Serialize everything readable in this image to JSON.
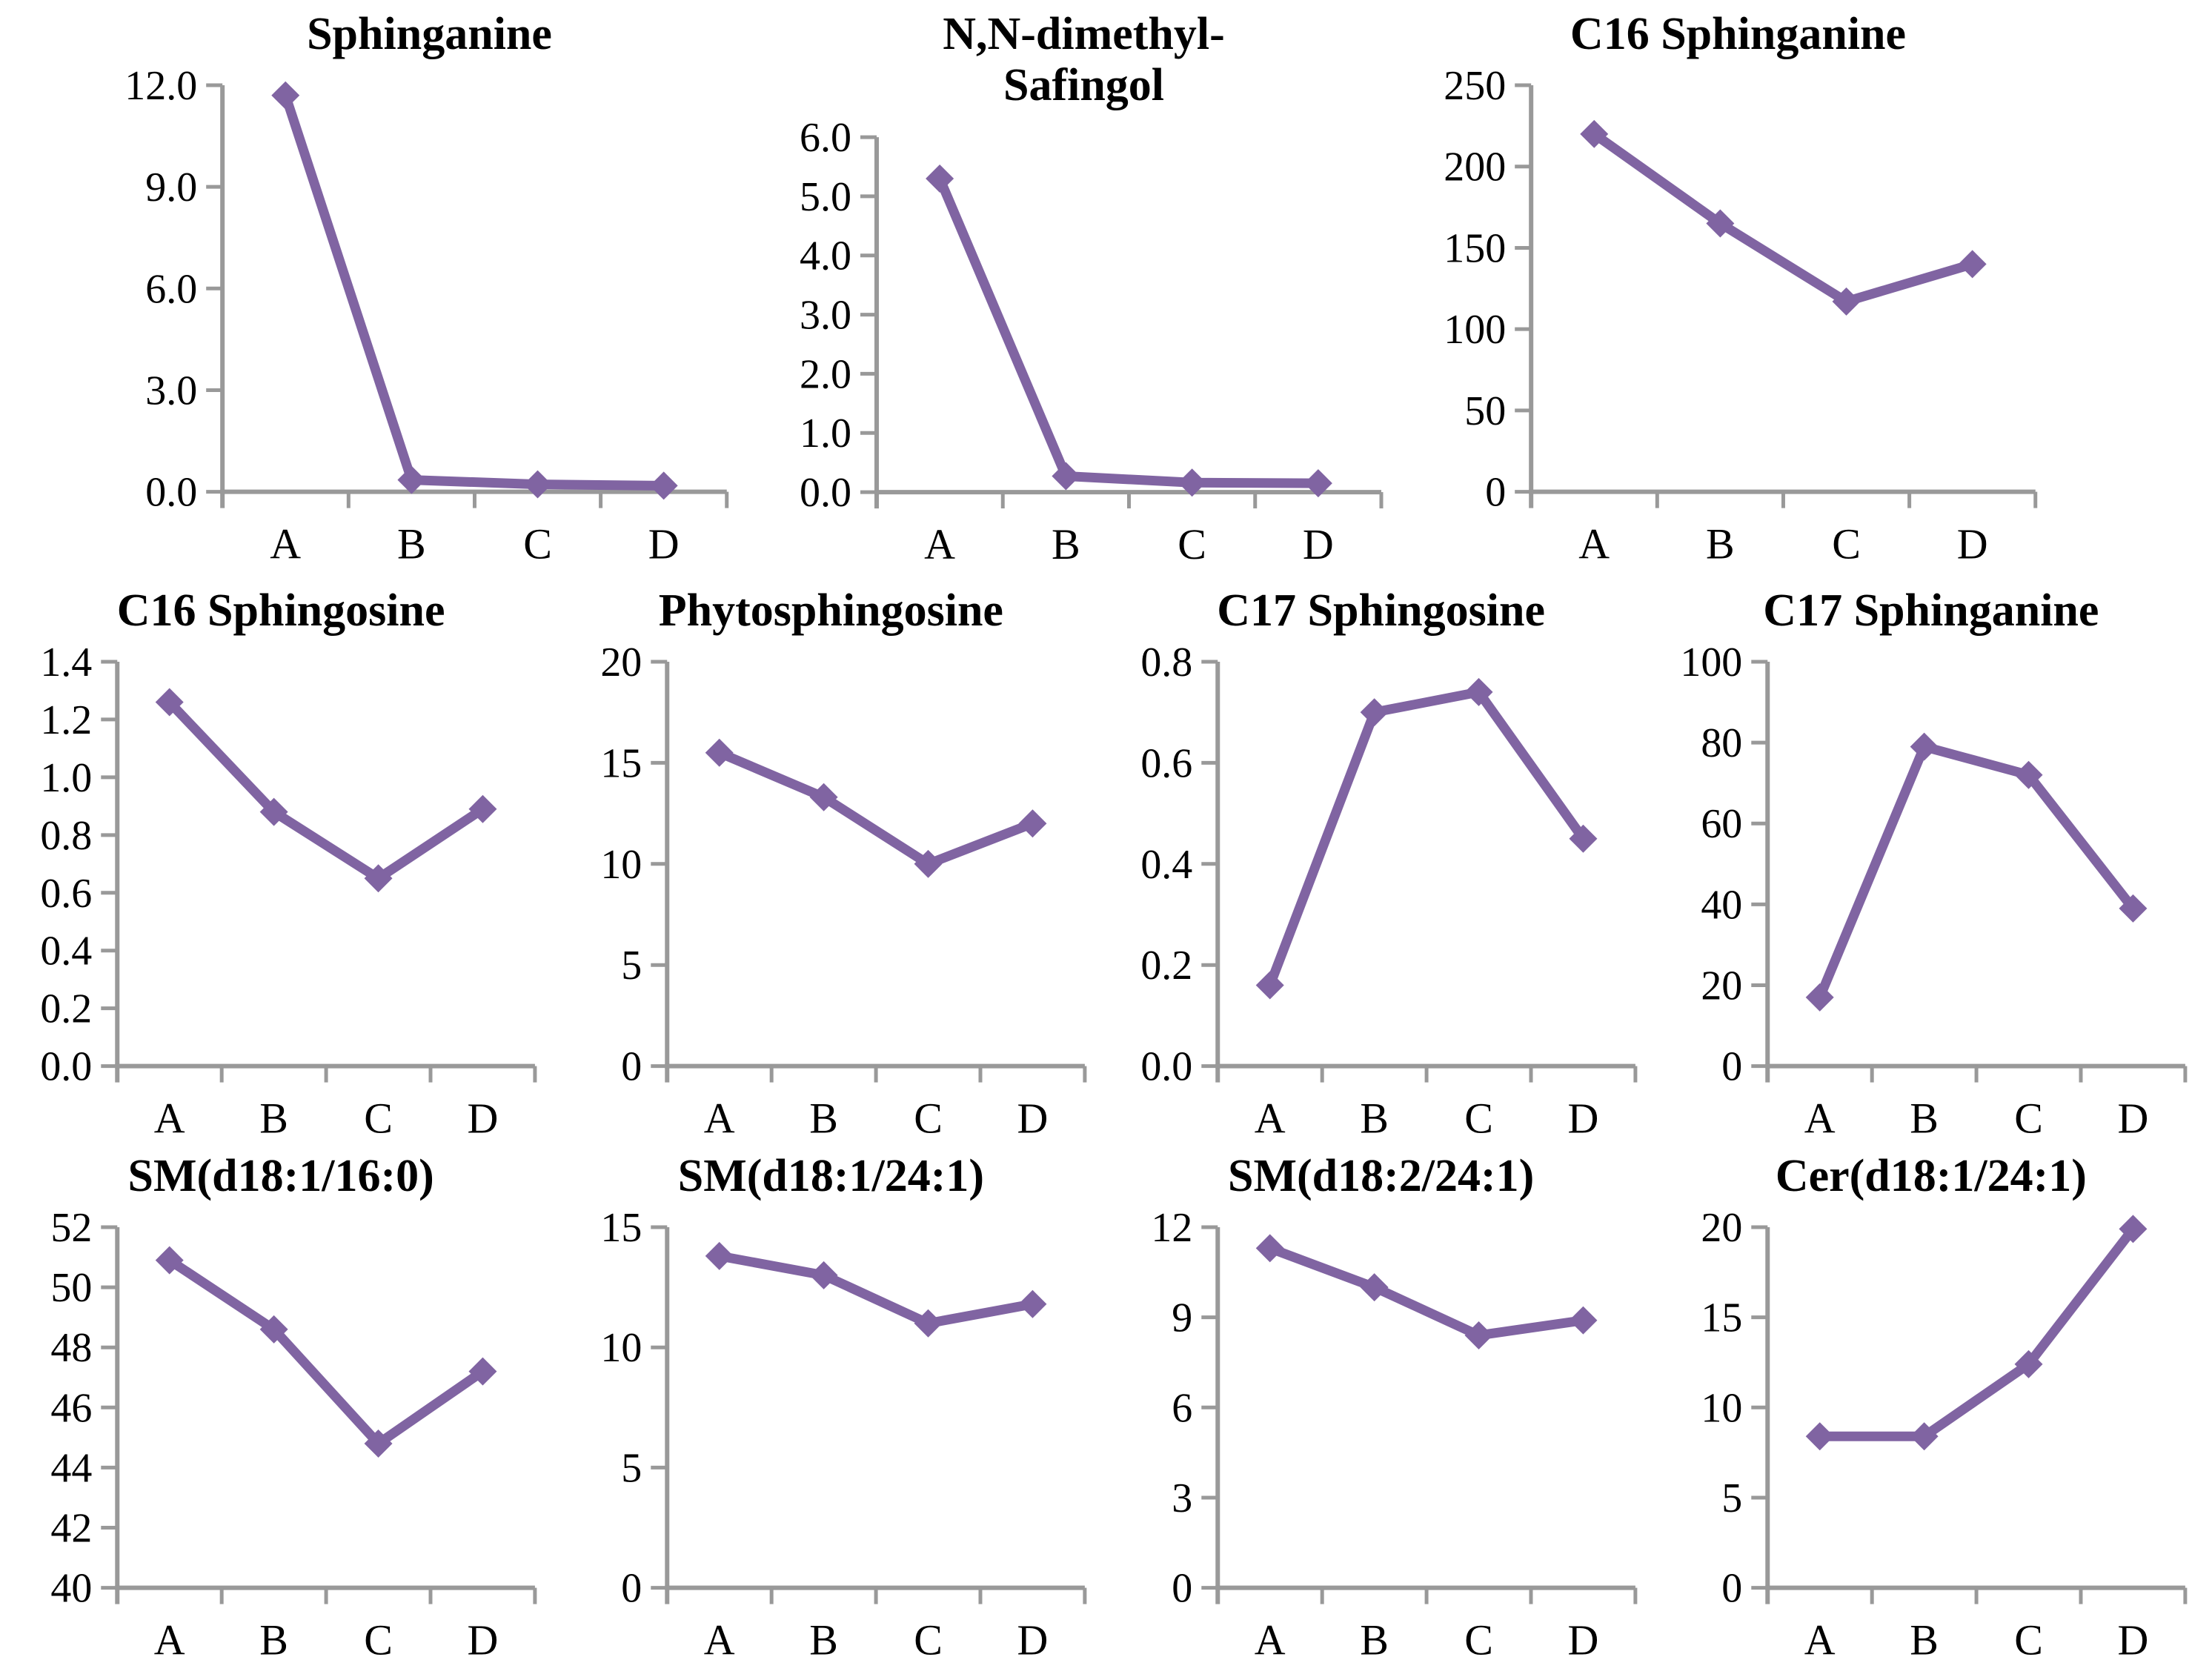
{
  "figure": {
    "background": "#ffffff",
    "description": "Panel of 11 line charts of sphingolipid species measured across four conditions"
  },
  "styles": {
    "line_color": "#8064A2",
    "axis_color": "#999999",
    "text_color": "#000000"
  },
  "categories": [
    "A",
    "B",
    "C",
    "D"
  ],
  "chart_data": [
    {
      "type": "line",
      "title": "Sphinganine",
      "categories": [
        "A",
        "B",
        "C",
        "D"
      ],
      "values": [
        11.7,
        0.35,
        0.22,
        0.18
      ],
      "ylim": [
        0,
        12
      ],
      "ystep": 3,
      "yticks": [
        "0.0",
        "3.0",
        "6.0",
        "9.0",
        "12.0"
      ],
      "xlabel": "",
      "ylabel": "",
      "grid": false,
      "legend": false,
      "marker": "diamond"
    },
    {
      "type": "line",
      "title": "N,N-dimethyl-\nSafingol",
      "categories": [
        "A",
        "B",
        "C",
        "D"
      ],
      "values": [
        5.3,
        0.27,
        0.16,
        0.15
      ],
      "ylim": [
        0,
        6
      ],
      "ystep": 1,
      "yticks": [
        "0.0",
        "1.0",
        "2.0",
        "3.0",
        "4.0",
        "5.0",
        "6.0"
      ],
      "xlabel": "",
      "ylabel": "",
      "grid": false,
      "legend": false,
      "marker": "diamond"
    },
    {
      "type": "line",
      "title": "C16 Sphinganine",
      "categories": [
        "A",
        "B",
        "C",
        "D"
      ],
      "values": [
        220,
        165,
        117,
        140
      ],
      "ylim": [
        0,
        250
      ],
      "ystep": 50,
      "yticks": [
        "0",
        "50",
        "100",
        "150",
        "200",
        "250"
      ],
      "xlabel": "",
      "ylabel": "",
      "grid": false,
      "legend": false,
      "marker": "diamond"
    },
    {
      "type": "line",
      "title": "C16 Sphingosine",
      "categories": [
        "A",
        "B",
        "C",
        "D"
      ],
      "values": [
        1.26,
        0.88,
        0.65,
        0.89
      ],
      "ylim": [
        0,
        1.4
      ],
      "ystep": 0.2,
      "yticks": [
        "0.0",
        "0.2",
        "0.4",
        "0.6",
        "0.8",
        "1.0",
        "1.2",
        "1.4"
      ],
      "xlabel": "",
      "ylabel": "",
      "grid": false,
      "legend": false,
      "marker": "diamond"
    },
    {
      "type": "line",
      "title": "Phytosphingosine",
      "categories": [
        "A",
        "B",
        "C",
        "D"
      ],
      "values": [
        15.5,
        13.3,
        10.0,
        12.0
      ],
      "ylim": [
        0,
        20
      ],
      "ystep": 5,
      "yticks": [
        "0",
        "5",
        "10",
        "15",
        "20"
      ],
      "xlabel": "",
      "ylabel": "",
      "grid": false,
      "legend": false,
      "marker": "diamond"
    },
    {
      "type": "line",
      "title": "C17 Sphingosine",
      "categories": [
        "A",
        "B",
        "C",
        "D"
      ],
      "values": [
        0.16,
        0.7,
        0.74,
        0.45
      ],
      "ylim": [
        0,
        0.8
      ],
      "ystep": 0.2,
      "yticks": [
        "0.0",
        "0.2",
        "0.4",
        "0.6",
        "0.8"
      ],
      "xlabel": "",
      "ylabel": "",
      "grid": false,
      "legend": false,
      "marker": "diamond"
    },
    {
      "type": "line",
      "title": "C17 Sphinganine",
      "categories": [
        "A",
        "B",
        "C",
        "D"
      ],
      "values": [
        17,
        79,
        72,
        39
      ],
      "ylim": [
        0,
        100
      ],
      "ystep": 20,
      "yticks": [
        "0",
        "20",
        "40",
        "60",
        "80",
        "100"
      ],
      "xlabel": "",
      "ylabel": "",
      "grid": false,
      "legend": false,
      "marker": "diamond"
    },
    {
      "type": "line",
      "title": "SM(d18:1/16:0)",
      "categories": [
        "A",
        "B",
        "C",
        "D"
      ],
      "values": [
        50.9,
        48.6,
        44.8,
        47.2
      ],
      "ylim": [
        40,
        52
      ],
      "ystep": 2,
      "yticks": [
        "40",
        "42",
        "44",
        "46",
        "48",
        "50",
        "52"
      ],
      "xlabel": "",
      "ylabel": "",
      "grid": false,
      "legend": false,
      "marker": "diamond"
    },
    {
      "type": "line",
      "title": "SM(d18:1/24:1)",
      "categories": [
        "A",
        "B",
        "C",
        "D"
      ],
      "values": [
        13.8,
        13.0,
        11.0,
        11.8
      ],
      "ylim": [
        0,
        15
      ],
      "ystep": 5,
      "yticks": [
        "0",
        "5",
        "10",
        "15"
      ],
      "xlabel": "",
      "ylabel": "",
      "grid": false,
      "legend": false,
      "marker": "diamond"
    },
    {
      "type": "line",
      "title": "SM(d18:2/24:1)",
      "categories": [
        "A",
        "B",
        "C",
        "D"
      ],
      "values": [
        11.3,
        10.0,
        8.4,
        8.9
      ],
      "ylim": [
        0,
        12
      ],
      "ystep": 3,
      "yticks": [
        "0",
        "3",
        "6",
        "9",
        "12"
      ],
      "xlabel": "",
      "ylabel": "",
      "grid": false,
      "legend": false,
      "marker": "diamond"
    },
    {
      "type": "line",
      "title": "Cer(d18:1/24:1)",
      "categories": [
        "A",
        "B",
        "C",
        "D"
      ],
      "values": [
        8.4,
        8.4,
        12.4,
        19.9
      ],
      "ylim": [
        0,
        20
      ],
      "ystep": 5,
      "yticks": [
        "0",
        "5",
        "10",
        "15",
        "20"
      ],
      "xlabel": "",
      "ylabel": "",
      "grid": false,
      "legend": false,
      "marker": "diamond"
    }
  ]
}
